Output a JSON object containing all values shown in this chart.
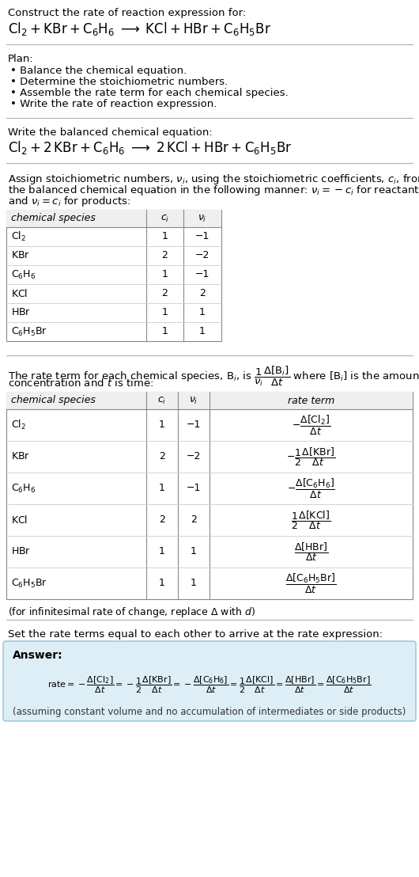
{
  "bg_color": "#ffffff",
  "text_color": "#000000",
  "title_line1": "Construct the rate of reaction expression for:",
  "plan_header": "Plan:",
  "plan_items": [
    "• Balance the chemical equation.",
    "• Determine the stoichiometric numbers.",
    "• Assemble the rate term for each chemical species.",
    "• Write the rate of reaction expression."
  ],
  "balanced_header": "Write the balanced chemical equation:",
  "stoich_intro_lines": [
    "Assign stoichiometric numbers, $\\nu_i$, using the stoichiometric coefficients, $c_i$, from",
    "the balanced chemical equation in the following manner: $\\nu_i = -c_i$ for reactants",
    "and $\\nu_i = c_i$ for products:"
  ],
  "table1_headers": [
    "chemical species",
    "$c_i$",
    "$\\nu_i$"
  ],
  "table1_rows": [
    [
      "$\\mathrm{Cl_2}$",
      "1",
      "−1"
    ],
    [
      "$\\mathrm{KBr}$",
      "2",
      "−2"
    ],
    [
      "$\\mathrm{C_6H_6}$",
      "1",
      "−1"
    ],
    [
      "$\\mathrm{KCl}$",
      "2",
      "2"
    ],
    [
      "$\\mathrm{HBr}$",
      "1",
      "1"
    ],
    [
      "$\\mathrm{C_6H_5Br}$",
      "1",
      "1"
    ]
  ],
  "rate_intro_line1": "The rate term for each chemical species, B$_i$, is $\\dfrac{1}{\\nu_i}\\dfrac{\\Delta[\\mathrm{B}_i]}{\\Delta t}$ where [B$_i$] is the amount",
  "rate_intro_line2": "concentration and $t$ is time:",
  "table2_headers": [
    "chemical species",
    "$c_i$",
    "$\\nu_i$",
    "rate term"
  ],
  "table2_rows": [
    [
      "$\\mathrm{Cl_2}$",
      "1",
      "−1",
      "$-\\dfrac{\\Delta[\\mathrm{Cl_2}]}{\\Delta t}$"
    ],
    [
      "$\\mathrm{KBr}$",
      "2",
      "−2",
      "$-\\dfrac{1}{2}\\dfrac{\\Delta[\\mathrm{KBr}]}{\\Delta t}$"
    ],
    [
      "$\\mathrm{C_6H_6}$",
      "1",
      "−1",
      "$-\\dfrac{\\Delta[\\mathrm{C_6H_6}]}{\\Delta t}$"
    ],
    [
      "$\\mathrm{KCl}$",
      "2",
      "2",
      "$\\dfrac{1}{2}\\dfrac{\\Delta[\\mathrm{KCl}]}{\\Delta t}$"
    ],
    [
      "$\\mathrm{HBr}$",
      "1",
      "1",
      "$\\dfrac{\\Delta[\\mathrm{HBr}]}{\\Delta t}$"
    ],
    [
      "$\\mathrm{C_6H_5Br}$",
      "1",
      "1",
      "$\\dfrac{\\Delta[\\mathrm{C_6H_5Br}]}{\\Delta t}$"
    ]
  ],
  "infinitesimal_note": "(for infinitesimal rate of change, replace Δ with $d$)",
  "set_equal_text": "Set the rate terms equal to each other to arrive at the rate expression:",
  "answer_box_color": "#ddeef6",
  "answer_box_border": "#90c4dc",
  "answer_label": "Answer:",
  "answer_footnote": "(assuming constant volume and no accumulation of intermediates or side products)"
}
